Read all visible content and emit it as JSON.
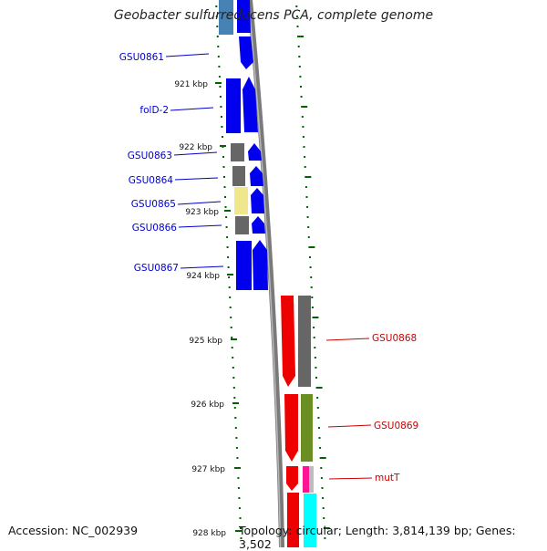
{
  "title": "Geobacter sulfurreducens PCA, complete genome",
  "footer": {
    "accession": "Accession: NC_002939",
    "summary": "Topology: circular; Length: 3,814,139 bp; Genes: 3,502"
  },
  "ticks": [
    {
      "label": "921 kbp"
    },
    {
      "label": "922 kbp"
    },
    {
      "label": "923 kbp"
    },
    {
      "label": "924 kbp"
    },
    {
      "label": "925 kbp"
    },
    {
      "label": "926 kbp"
    },
    {
      "label": "927 kbp"
    },
    {
      "label": "928 kbp"
    }
  ],
  "gene_labels": [
    {
      "name": "GSU0861",
      "strand": "forward",
      "color": "#0000cc"
    },
    {
      "name": "folD-2",
      "strand": "forward",
      "color": "#0000cc"
    },
    {
      "name": "GSU0863",
      "strand": "forward",
      "color": "#0000cc"
    },
    {
      "name": "GSU0864",
      "strand": "forward",
      "color": "#0000cc"
    },
    {
      "name": "GSU0865",
      "strand": "forward",
      "color": "#0000cc"
    },
    {
      "name": "GSU0866",
      "strand": "forward",
      "color": "#0000cc"
    },
    {
      "name": "GSU0867",
      "strand": "forward",
      "color": "#0000cc"
    },
    {
      "name": "GSU0868",
      "strand": "reverse",
      "color": "#cc0000"
    },
    {
      "name": "GSU0869",
      "strand": "reverse",
      "color": "#cc0000"
    },
    {
      "name": "mutT",
      "strand": "reverse",
      "color": "#cc0000"
    }
  ],
  "colors": {
    "forward_cds": "#0000ee",
    "reverse_cds": "#ee0000",
    "cog_gray": "#666666",
    "cog_khaki": "#f0e68c",
    "cog_olive": "#6b8e23",
    "cog_pink": "#ff1493",
    "cog_cyan": "#00ffff",
    "cog_steelblue": "#4682b4",
    "backbone": "#808080",
    "tick_color": "#006400"
  }
}
